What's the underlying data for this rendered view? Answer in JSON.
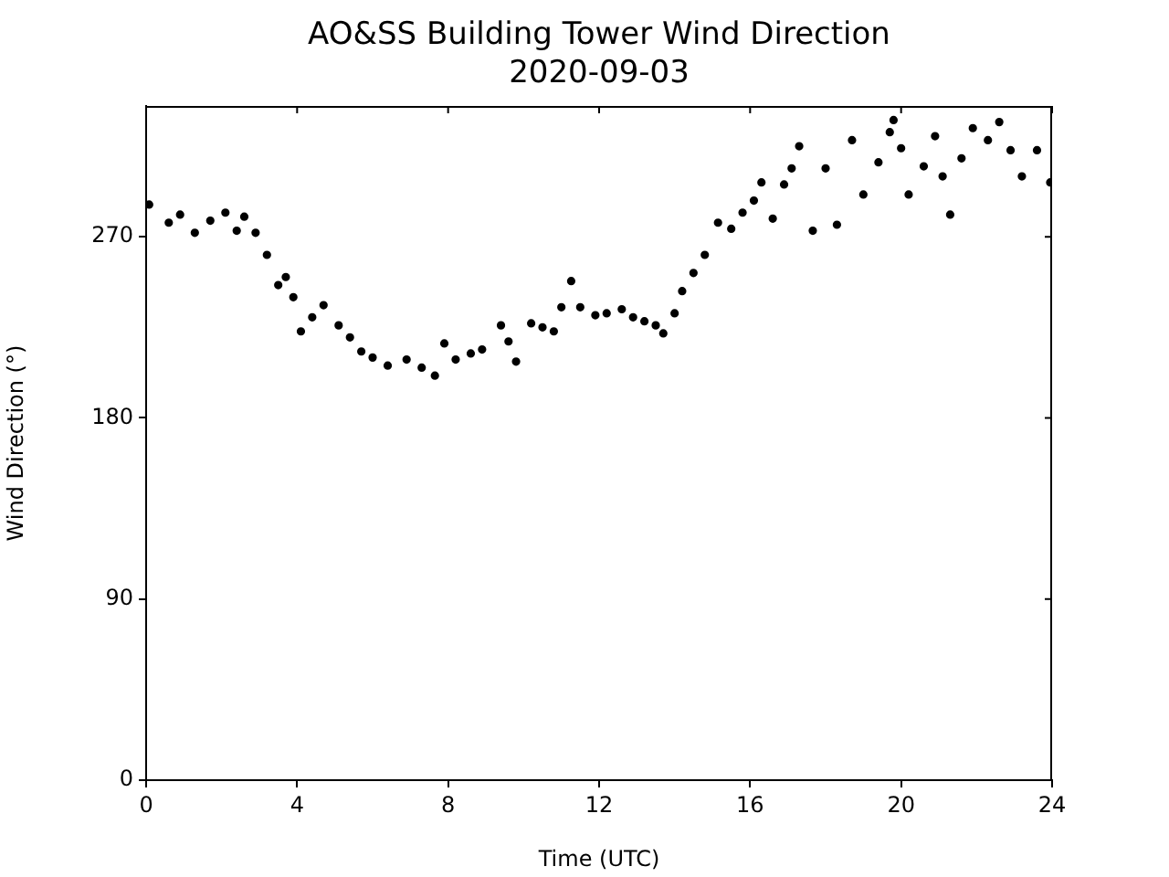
{
  "chart_data": {
    "type": "scatter",
    "title": "AO&SS Building Tower Wind Direction",
    "subtitle": "2020-09-03",
    "xlabel": "Time (UTC)",
    "ylabel": "Wind Direction (°)",
    "x": [
      0.08,
      0.6,
      0.9,
      1.29,
      1.7,
      2.1,
      2.4,
      2.6,
      2.9,
      3.2,
      3.5,
      3.7,
      3.9,
      4.1,
      4.4,
      4.7,
      5.1,
      5.4,
      5.7,
      6.0,
      6.4,
      6.9,
      7.3,
      7.65,
      7.9,
      8.2,
      8.6,
      8.9,
      9.4,
      9.6,
      9.8,
      10.2,
      10.5,
      10.8,
      11.0,
      11.26,
      11.5,
      11.9,
      12.2,
      12.6,
      12.9,
      13.2,
      13.5,
      13.7,
      14.0,
      14.2,
      14.5,
      14.8,
      15.15,
      15.5,
      15.8,
      16.1,
      16.3,
      16.6,
      16.9,
      17.1,
      17.3,
      17.66,
      18.0,
      18.3,
      18.7,
      19.0,
      19.4,
      19.7,
      19.8,
      20.0,
      20.2,
      20.6,
      20.9,
      21.1,
      21.3,
      21.6,
      21.9,
      22.3,
      22.6,
      22.9,
      23.2,
      23.6,
      23.95
    ],
    "series": [
      {
        "color": "#000000",
        "values": [
          286,
          277,
          281,
          272,
          278,
          282,
          273,
          280,
          272,
          261,
          246,
          250,
          240,
          223,
          230,
          236,
          226,
          220,
          213,
          210,
          206,
          209,
          205,
          201,
          217,
          209,
          212,
          214,
          226,
          218,
          208,
          227,
          225,
          223,
          235,
          248,
          235,
          231,
          232,
          234,
          230,
          228,
          226,
          222,
          232,
          243,
          252,
          261,
          277,
          274,
          282,
          288,
          297,
          279,
          296,
          304,
          315,
          273,
          304,
          276,
          318,
          291,
          307,
          322,
          328,
          314,
          291,
          305,
          320,
          300,
          281,
          309,
          324,
          318,
          327,
          313,
          300,
          313,
          297
        ]
      }
    ],
    "xlim": [
      0,
      24
    ],
    "xticks": [
      0,
      4,
      8,
      12,
      16,
      20,
      24
    ],
    "ylim": [
      0,
      335
    ],
    "yticks": [
      0,
      90,
      180,
      270
    ],
    "grid": false,
    "legend": false,
    "marker": "circle"
  }
}
